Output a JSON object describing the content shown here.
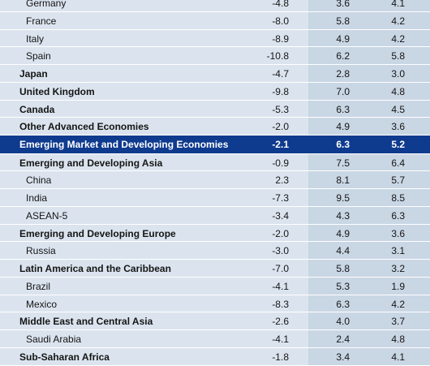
{
  "rows": [
    {
      "label": "Germany",
      "v1": "-4.8",
      "v2": "3.6",
      "v3": "4.1",
      "style": "sub"
    },
    {
      "label": "France",
      "v1": "-8.0",
      "v2": "5.8",
      "v3": "4.2",
      "style": "sub"
    },
    {
      "label": "Italy",
      "v1": "-8.9",
      "v2": "4.9",
      "v3": "4.2",
      "style": "sub"
    },
    {
      "label": "Spain",
      "v1": "-10.8",
      "v2": "6.2",
      "v3": "5.8",
      "style": "sub"
    },
    {
      "label": "Japan",
      "v1": "-4.7",
      "v2": "2.8",
      "v3": "3.0",
      "style": "bold"
    },
    {
      "label": "United Kingdom",
      "v1": "-9.8",
      "v2": "7.0",
      "v3": "4.8",
      "style": "bold"
    },
    {
      "label": "Canada",
      "v1": "-5.3",
      "v2": "6.3",
      "v3": "4.5",
      "style": "bold"
    },
    {
      "label": "Other Advanced Economies",
      "v1": "-2.0",
      "v2": "4.9",
      "v3": "3.6",
      "style": "bold"
    },
    {
      "label": "Emerging Market and Developing Economies",
      "v1": "-2.1",
      "v2": "6.3",
      "v3": "5.2",
      "style": "highlight"
    },
    {
      "label": "Emerging and Developing Asia",
      "v1": "-0.9",
      "v2": "7.5",
      "v3": "6.4",
      "style": "bold"
    },
    {
      "label": "China",
      "v1": "2.3",
      "v2": "8.1",
      "v3": "5.7",
      "style": "sub"
    },
    {
      "label": "India",
      "v1": "-7.3",
      "v2": "9.5",
      "v3": "8.5",
      "style": "sub"
    },
    {
      "label": "ASEAN-5",
      "v1": "-3.4",
      "v2": "4.3",
      "v3": "6.3",
      "style": "sub"
    },
    {
      "label": "Emerging and Developing Europe",
      "v1": "-2.0",
      "v2": "4.9",
      "v3": "3.6",
      "style": "bold"
    },
    {
      "label": "Russia",
      "v1": "-3.0",
      "v2": "4.4",
      "v3": "3.1",
      "style": "sub"
    },
    {
      "label": "Latin America and the Caribbean",
      "v1": "-7.0",
      "v2": "5.8",
      "v3": "3.2",
      "style": "bold"
    },
    {
      "label": "Brazil",
      "v1": "-4.1",
      "v2": "5.3",
      "v3": "1.9",
      "style": "sub"
    },
    {
      "label": "Mexico",
      "v1": "-8.3",
      "v2": "6.3",
      "v3": "4.2",
      "style": "sub"
    },
    {
      "label": "Middle East and Central Asia",
      "v1": "-2.6",
      "v2": "4.0",
      "v3": "3.7",
      "style": "bold"
    },
    {
      "label": "Saudi Arabia",
      "v1": "-4.1",
      "v2": "2.4",
      "v3": "4.8",
      "style": "sub"
    },
    {
      "label": "Sub-Saharan Africa",
      "v1": "-1.8",
      "v2": "3.4",
      "v3": "4.1",
      "style": "bold"
    }
  ]
}
